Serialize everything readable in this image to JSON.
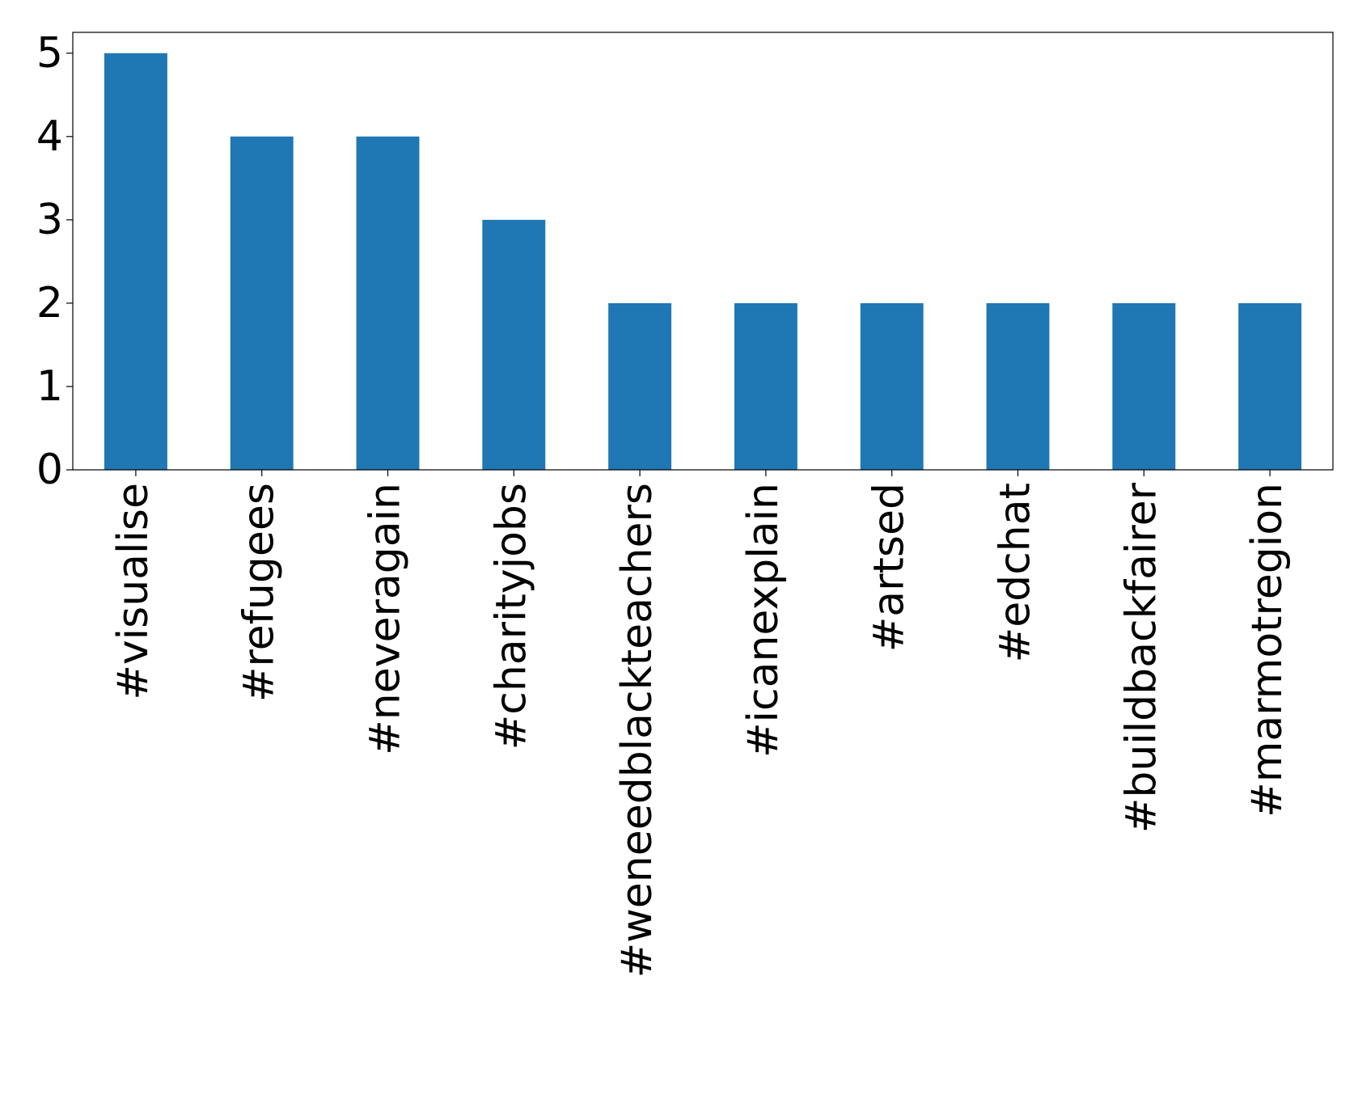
{
  "chart_data": {
    "type": "bar",
    "categories": [
      "#visualise",
      "#refugees",
      "#neveragain",
      "#charityjobs",
      "#weneedblackteachers",
      "#icanexplain",
      "#artsed",
      "#edchat",
      "#buildbackfairer",
      "#marmotregion"
    ],
    "values": [
      5,
      4,
      4,
      3,
      2,
      2,
      2,
      2,
      2,
      2
    ],
    "color": "#1f77b4",
    "ylim": [
      0,
      5.25
    ],
    "yticks": [
      0,
      1,
      2,
      3,
      4,
      5
    ],
    "grid": false
  }
}
